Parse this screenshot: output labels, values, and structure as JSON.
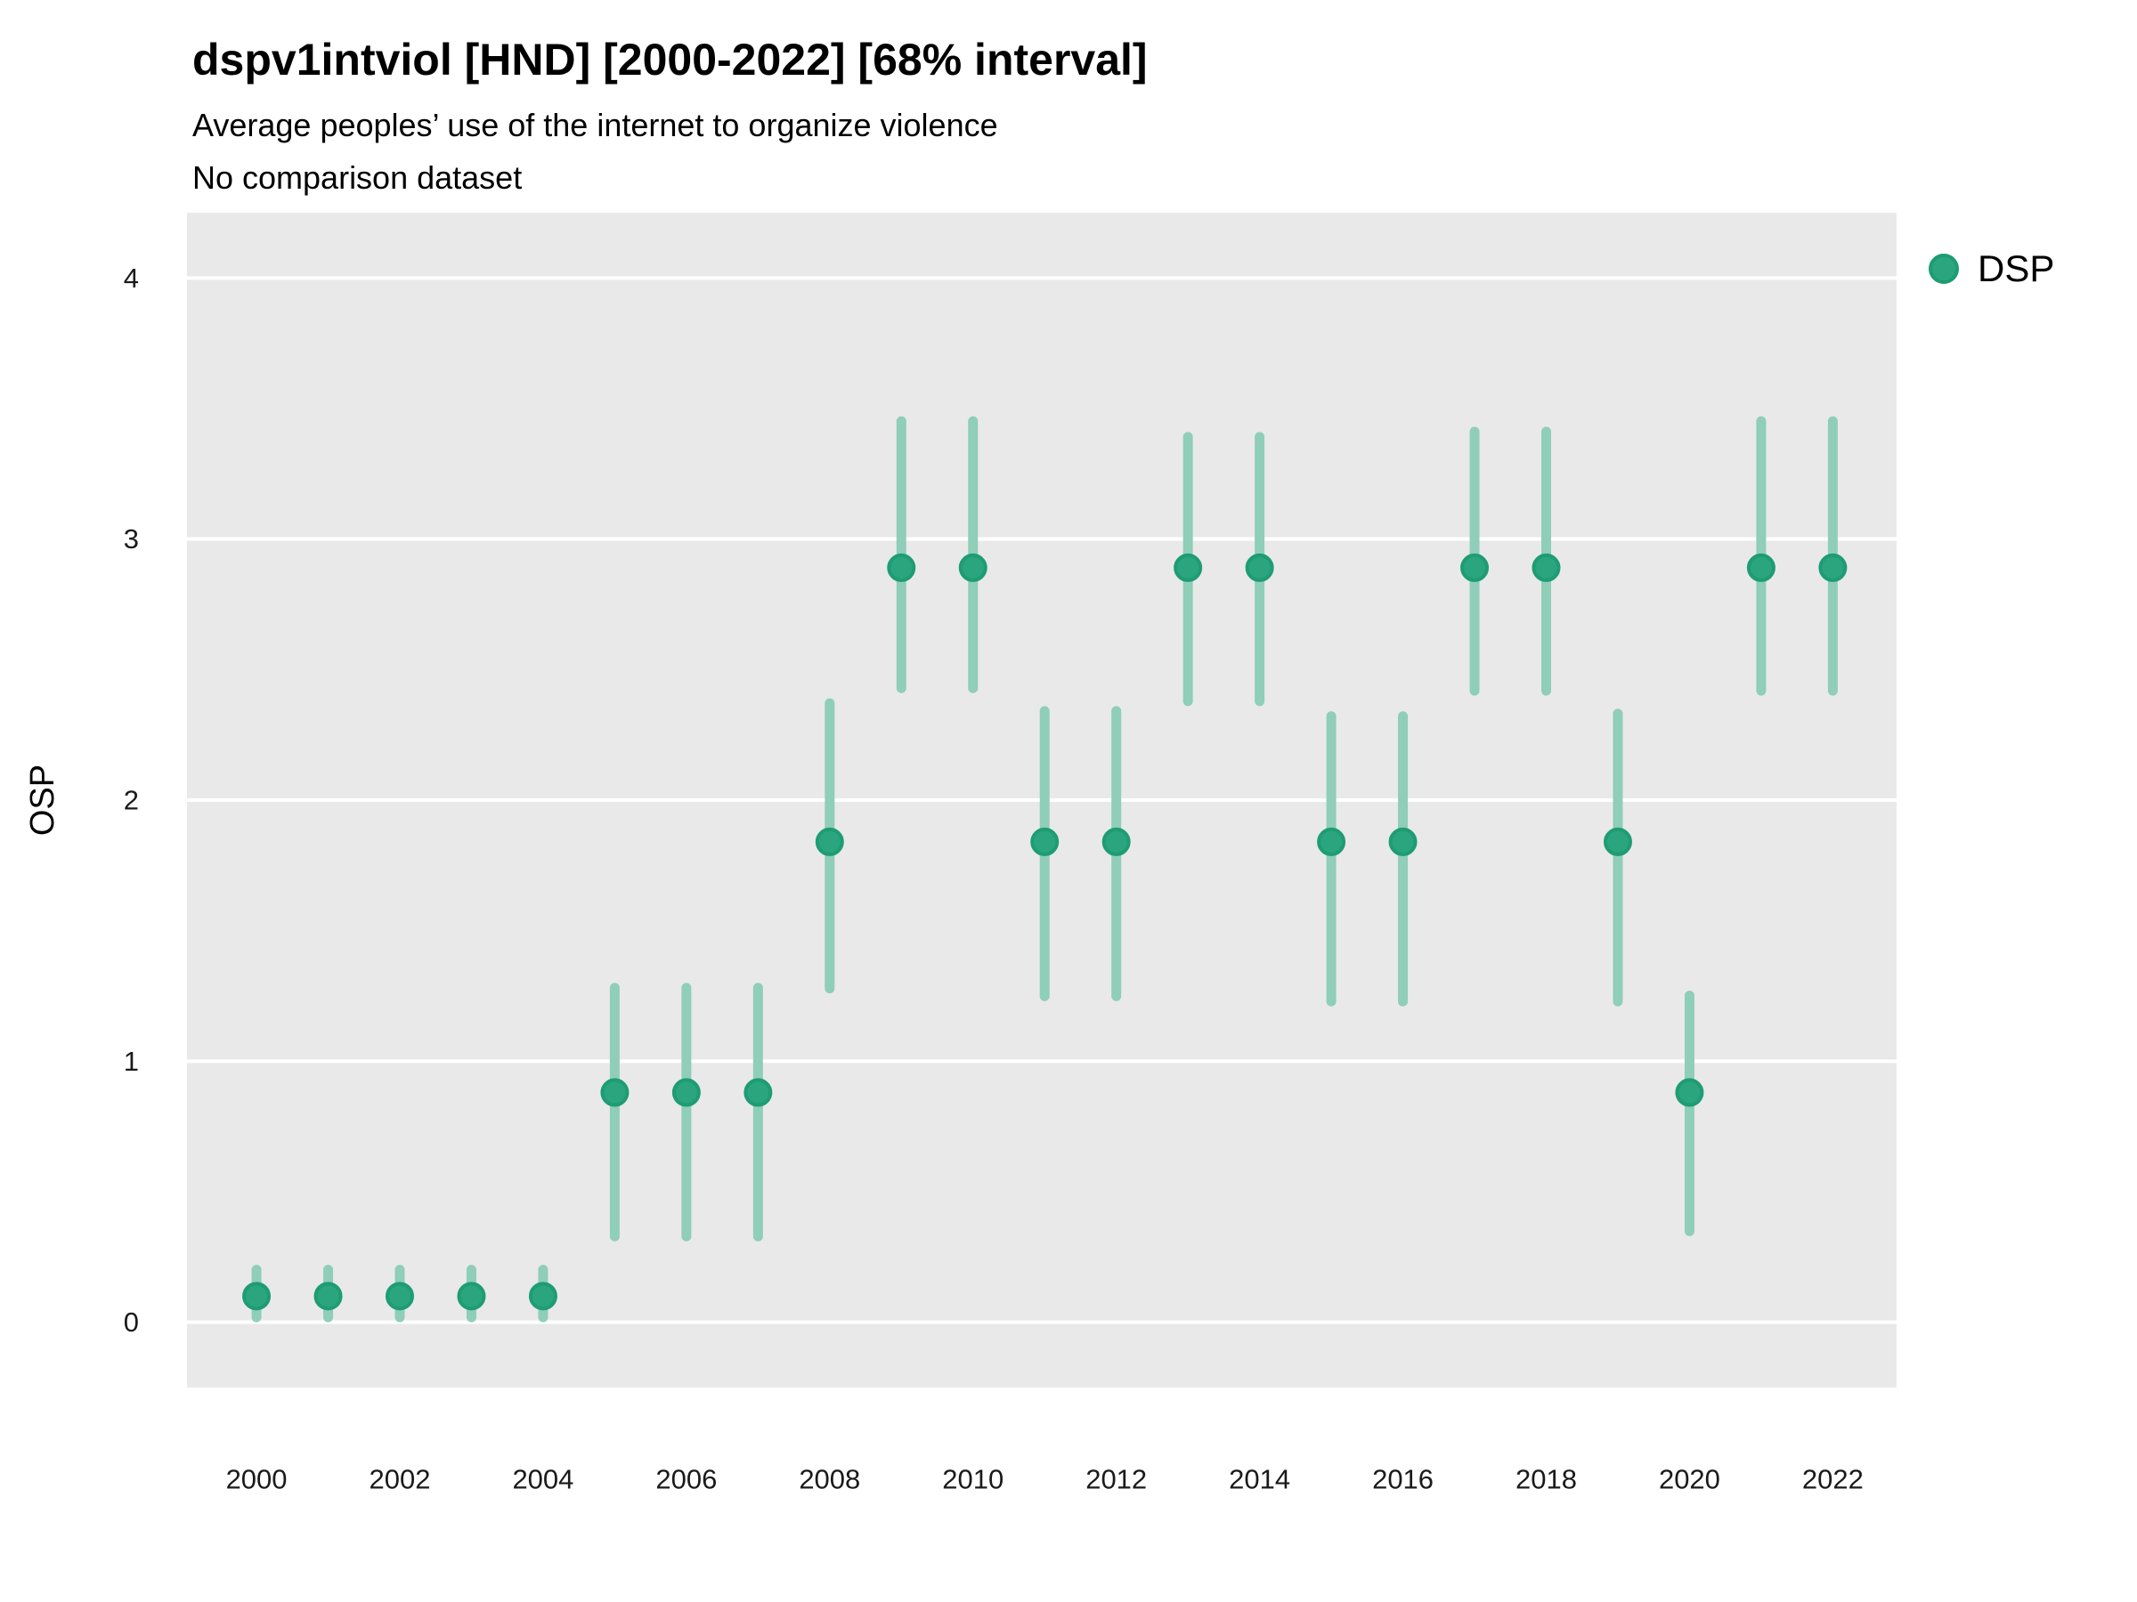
{
  "header": {
    "title": "dspv1intviol [HND] [2000-2022] [68% interval]",
    "subtitle": "Average peoples’ use of the internet to organize violence",
    "caption": "No comparison dataset"
  },
  "legend": {
    "label": "DSP"
  },
  "colors": {
    "point_fill": "#2AA57E",
    "point_stroke": "#1E9C73",
    "interval_bar": "#8FCEB9",
    "panel_background": "#E9E9E9",
    "gridline": "#FFFFFF",
    "tick_text": "#1A1A1A",
    "title_text": "#000000"
  },
  "chart_data": {
    "type": "scatter",
    "subtype": "pointrange",
    "title": "dspv1intviol [HND] [2000-2022] [68% interval]",
    "subtitle": "Average peoples’ use of the internet to organize violence",
    "caption": "No comparison dataset",
    "xlabel": "",
    "ylabel": "OSP",
    "interval_level": "68%",
    "grid": "major-horizontal-only",
    "legend_position": "right-top",
    "xlim": [
      1999.03,
      2022.89
    ],
    "ylim": [
      -0.25,
      4.25
    ],
    "xticks": [
      2000,
      2002,
      2004,
      2006,
      2008,
      2010,
      2012,
      2014,
      2016,
      2018,
      2020,
      2022
    ],
    "yticks": [
      0,
      1,
      2,
      3,
      4
    ],
    "series": [
      {
        "name": "DSP",
        "points": [
          {
            "x": 2000,
            "y": 0.1,
            "lo": 0.0,
            "hi": 0.22
          },
          {
            "x": 2001,
            "y": 0.1,
            "lo": 0.0,
            "hi": 0.22
          },
          {
            "x": 2002,
            "y": 0.1,
            "lo": 0.0,
            "hi": 0.22
          },
          {
            "x": 2003,
            "y": 0.1,
            "lo": 0.0,
            "hi": 0.22
          },
          {
            "x": 2004,
            "y": 0.1,
            "lo": 0.0,
            "hi": 0.22
          },
          {
            "x": 2005,
            "y": 0.88,
            "lo": 0.31,
            "hi": 1.3
          },
          {
            "x": 2006,
            "y": 0.88,
            "lo": 0.31,
            "hi": 1.3
          },
          {
            "x": 2007,
            "y": 0.88,
            "lo": 0.31,
            "hi": 1.3
          },
          {
            "x": 2008,
            "y": 1.84,
            "lo": 1.26,
            "hi": 2.39
          },
          {
            "x": 2009,
            "y": 2.89,
            "lo": 2.41,
            "hi": 3.47
          },
          {
            "x": 2010,
            "y": 2.89,
            "lo": 2.41,
            "hi": 3.47
          },
          {
            "x": 2011,
            "y": 1.84,
            "lo": 1.23,
            "hi": 2.36
          },
          {
            "x": 2012,
            "y": 1.84,
            "lo": 1.23,
            "hi": 2.36
          },
          {
            "x": 2013,
            "y": 2.89,
            "lo": 2.36,
            "hi": 3.41
          },
          {
            "x": 2014,
            "y": 2.89,
            "lo": 2.36,
            "hi": 3.41
          },
          {
            "x": 2015,
            "y": 1.84,
            "lo": 1.21,
            "hi": 2.34
          },
          {
            "x": 2016,
            "y": 1.84,
            "lo": 1.21,
            "hi": 2.34
          },
          {
            "x": 2017,
            "y": 2.89,
            "lo": 2.4,
            "hi": 3.43
          },
          {
            "x": 2018,
            "y": 2.89,
            "lo": 2.4,
            "hi": 3.43
          },
          {
            "x": 2019,
            "y": 1.84,
            "lo": 1.21,
            "hi": 2.35
          },
          {
            "x": 2020,
            "y": 0.88,
            "lo": 0.33,
            "hi": 1.27
          },
          {
            "x": 2021,
            "y": 2.89,
            "lo": 2.4,
            "hi": 3.47
          },
          {
            "x": 2022,
            "y": 2.89,
            "lo": 2.4,
            "hi": 3.47
          }
        ]
      }
    ]
  }
}
